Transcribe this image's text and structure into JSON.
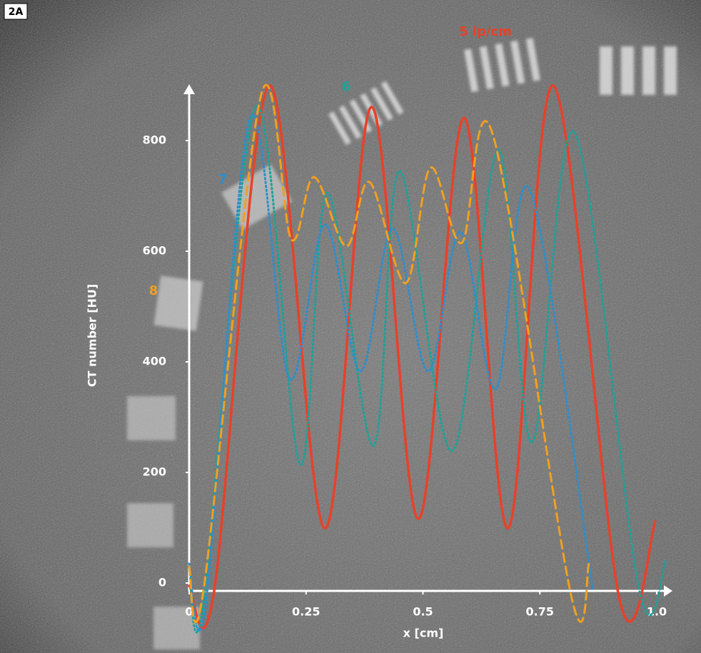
{
  "panel_label": "2A",
  "chart_data": {
    "type": "line",
    "x_label": "x [cm]",
    "y_label": "CT number [HU]",
    "xlim": [
      0,
      1
    ],
    "ylim": [
      0,
      900
    ],
    "xticks": [
      0,
      0.25,
      0.5,
      0.75,
      {
        "value": 1,
        "label": "1.0"
      }
    ],
    "yticks": [
      0,
      200,
      400,
      600,
      800
    ],
    "series": [
      {
        "name": "5 lp/cm",
        "color": "#e8412a",
        "style": "solid",
        "x": [
          0,
          0.053,
          0.171,
          0.29,
          0.39,
          0.49,
          0.588,
          0.682,
          0.779,
          0.921,
          0.997
        ],
        "values": [
          -5,
          -17,
          899,
          99,
          861,
          116,
          841,
          99,
          899,
          -32,
          112
        ]
      },
      {
        "name": "6",
        "color": "#1aa39a",
        "style": "dotted",
        "x": [
          0,
          0.03,
          0.142,
          0.237,
          0.295,
          0.394,
          0.45,
          0.562,
          0.661,
          0.733,
          0.824,
          0.962,
          1.02
        ],
        "values": [
          30,
          -40,
          861,
          215,
          706,
          248,
          745,
          239,
          783,
          254,
          815,
          -10,
          41
        ]
      },
      {
        "name": "7",
        "color": "#2a8fd0",
        "style": "dotted",
        "x": [
          0,
          0.035,
          0.13,
          0.214,
          0.29,
          0.366,
          0.435,
          0.511,
          0.58,
          0.656,
          0.728,
          0.863
        ],
        "values": [
          35,
          -40,
          841,
          370,
          648,
          383,
          641,
          383,
          635,
          351,
          712,
          -10
        ]
      },
      {
        "name": "8",
        "color": "#f0a020",
        "style": "dashed",
        "x": [
          0,
          0.03,
          0.153,
          0.218,
          0.267,
          0.336,
          0.386,
          0.463,
          0.516,
          0.583,
          0.649,
          0.817,
          0.855
        ],
        "values": [
          30,
          -17,
          880,
          622,
          734,
          609,
          725,
          542,
          751,
          615,
          812,
          -23,
          35
        ]
      }
    ]
  }
}
